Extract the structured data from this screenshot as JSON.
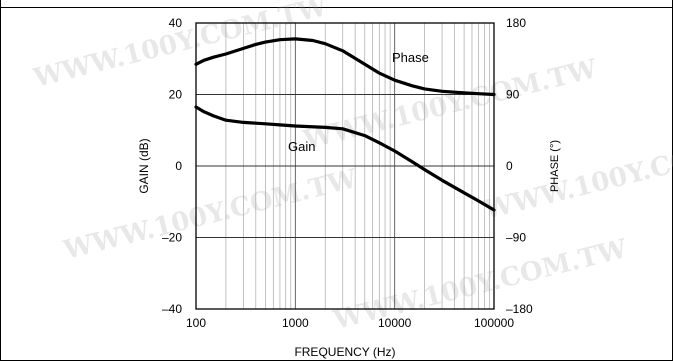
{
  "watermark": "WWW.100Y.COM.TW",
  "chart_data": {
    "type": "line",
    "xlabel": "FREQUENCY (Hz)",
    "ylabel_left": "GAIN (dB)",
    "ylabel_right": "PHASE (°)",
    "x_scale": "log",
    "xlim": [
      100,
      100000
    ],
    "ylim_left": [
      -40,
      40
    ],
    "ylim_right": [
      -180,
      180
    ],
    "x_ticks": [
      100,
      1000,
      10000,
      100000
    ],
    "x_tick_labels": [
      "100",
      "1000",
      "10000",
      "100000"
    ],
    "y_left_ticks": [
      40,
      20,
      0,
      -20,
      -40
    ],
    "y_left_tick_labels": [
      "40",
      "20",
      "0",
      "–20",
      "–40"
    ],
    "y_right_ticks": [
      180,
      90,
      0,
      -90,
      -180
    ],
    "y_right_tick_labels": [
      "180",
      "90",
      "0",
      "–90",
      "–180"
    ],
    "grid": true,
    "series": [
      {
        "name": "Phase",
        "axis": "right",
        "x": [
          100,
          120,
          150,
          200,
          300,
          400,
          500,
          700,
          1000,
          1500,
          2000,
          3000,
          5000,
          7000,
          10000,
          15000,
          20000,
          30000,
          50000,
          70000,
          100000
        ],
        "y": [
          128,
          133,
          137,
          141,
          148,
          153,
          156,
          159,
          160,
          158,
          154,
          145,
          128,
          117,
          108,
          101,
          97,
          94,
          92,
          91,
          90
        ]
      },
      {
        "name": "Gain",
        "axis": "left",
        "x": [
          100,
          120,
          150,
          200,
          300,
          500,
          700,
          1000,
          2000,
          3000,
          5000,
          7000,
          10000,
          15000,
          20000,
          30000,
          50000,
          70000,
          100000
        ],
        "y": [
          16.5,
          15.2,
          14.0,
          12.8,
          12.2,
          11.8,
          11.5,
          11.2,
          10.8,
          10.4,
          8.5,
          6.5,
          4.2,
          1.2,
          -1.0,
          -4.0,
          -7.5,
          -9.8,
          -12.3
        ]
      }
    ],
    "annotations": [
      {
        "text": "Phase",
        "series": "Phase"
      },
      {
        "text": "Gain",
        "series": "Gain"
      }
    ]
  }
}
